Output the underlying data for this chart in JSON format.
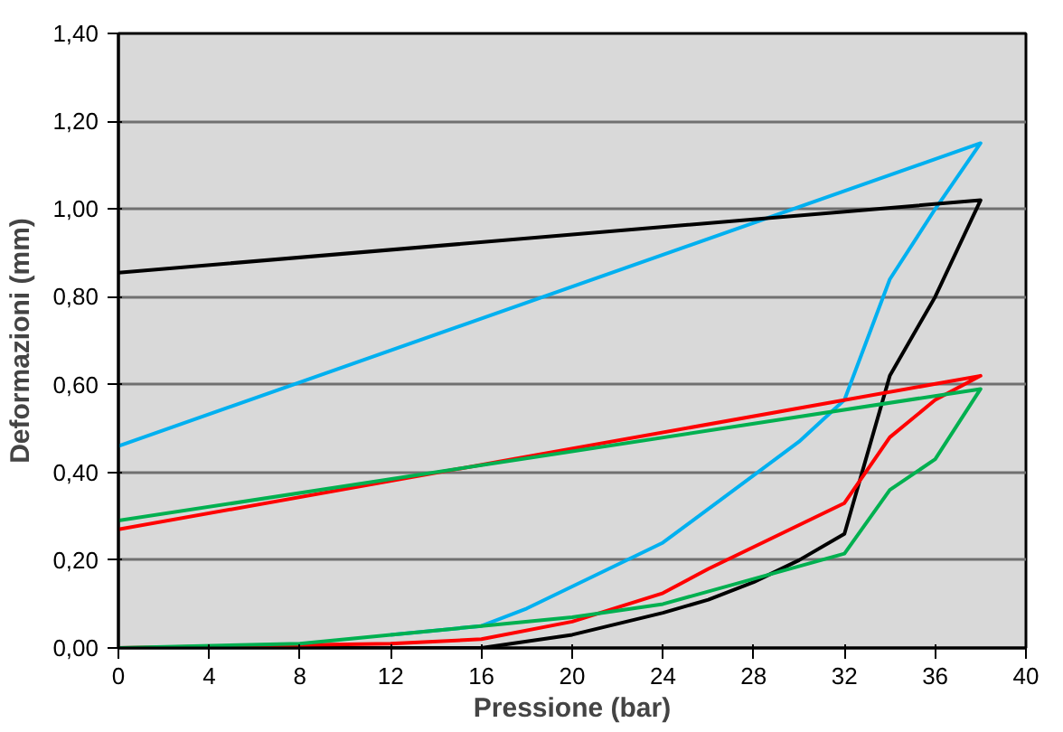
{
  "chart_data": {
    "type": "line",
    "xlabel": "Pressione (bar)",
    "ylabel": "Deformazioni (mm)",
    "xlim": [
      0,
      40
    ],
    "xticks": [
      0,
      4,
      8,
      12,
      16,
      20,
      24,
      28,
      32,
      36,
      40
    ],
    "ylim": [
      0,
      1.4
    ],
    "yticks": [
      {
        "value": 0,
        "label": "0,00"
      },
      {
        "value": 0.2,
        "label": "0,20"
      },
      {
        "value": 0.4,
        "label": "0,40"
      },
      {
        "value": 0.6,
        "label": "0,60"
      },
      {
        "value": 0.8,
        "label": "0,80"
      },
      {
        "value": 1.0,
        "label": "1,00"
      },
      {
        "value": 1.2,
        "label": "1,20"
      },
      {
        "value": 1.4,
        "label": "1,40"
      }
    ],
    "grid": "y",
    "marker": "none",
    "line_style": "solid",
    "series": [
      {
        "color": "#00b0f0",
        "x": [
          12,
          16,
          18,
          20,
          24,
          30,
          32,
          34,
          36,
          38,
          0
        ],
        "values": [
          0.03,
          0.05,
          0.09,
          0.14,
          0.24,
          0.47,
          0.565,
          0.84,
          1.0,
          1.15,
          0.46
        ]
      },
      {
        "color": "#000000",
        "x": [
          0,
          16,
          20,
          24,
          26,
          28,
          30,
          32,
          34,
          36,
          38,
          0
        ],
        "values": [
          0,
          0,
          0.03,
          0.08,
          0.11,
          0.15,
          0.2,
          0.26,
          0.62,
          0.8,
          1.02,
          0.855
        ]
      },
      {
        "color": "#ff0000",
        "x": [
          0,
          12,
          16,
          20,
          24,
          26,
          32,
          34,
          36,
          38,
          0
        ],
        "values": [
          0,
          0.01,
          0.02,
          0.06,
          0.125,
          0.18,
          0.33,
          0.48,
          0.565,
          0.62,
          0.27
        ]
      },
      {
        "color": "#00b050",
        "x": [
          0,
          8,
          12,
          16,
          20,
          24,
          32,
          34,
          36,
          38,
          0
        ],
        "values": [
          0,
          0.01,
          0.03,
          0.05,
          0.07,
          0.1,
          0.215,
          0.36,
          0.43,
          0.59,
          0.29
        ]
      }
    ]
  }
}
